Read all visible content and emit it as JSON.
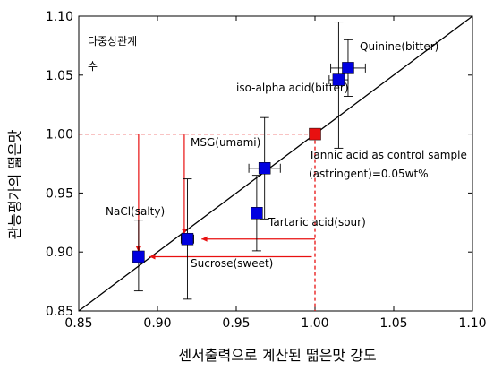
{
  "chart_data": {
    "type": "scatter",
    "title": "",
    "xlabel": "센서출력으로 계산된 떫은맛 강도",
    "ylabel": "관능평가의 떫은맛",
    "xlim": [
      0.85,
      1.1
    ],
    "ylim": [
      0.85,
      1.1
    ],
    "x_ticks": [
      "0.85",
      "0.90",
      "0.95",
      "1.00",
      "1.05",
      "1.10"
    ],
    "y_ticks": [
      "0.85",
      "0.90",
      "0.95",
      "1.00",
      "1.05",
      "1.10"
    ],
    "grid": false,
    "annotation_corr": [
      "다중상관계",
      "수"
    ],
    "diagonal": {
      "from": [
        0.85,
        0.85
      ],
      "to": [
        1.1,
        1.1
      ]
    },
    "reference": {
      "x": 1.0,
      "y": 1.0,
      "color": "#e81010"
    },
    "points": [
      {
        "name": "NaCl(salty)",
        "x": 0.888,
        "y": 0.896,
        "yerr": [
          0.867,
          0.927
        ],
        "xerr": null,
        "color": "#0000e0"
      },
      {
        "name": "Sucrose(sweet)",
        "x": 0.919,
        "y": 0.911,
        "yerr": [
          0.86,
          0.962
        ],
        "xerr": [
          0.915,
          0.923
        ],
        "color": "#0000e0"
      },
      {
        "name": "Tartaric acid(sour)",
        "x": 0.963,
        "y": 0.933,
        "yerr": [
          0.901,
          0.965
        ],
        "xerr": null,
        "color": "#0000e0"
      },
      {
        "name": "MSG(umami)",
        "x": 0.968,
        "y": 0.971,
        "yerr": [
          0.928,
          1.014
        ],
        "xerr": [
          0.958,
          0.978
        ],
        "color": "#0000e0"
      },
      {
        "name": "iso-alpha acid(bitter)",
        "x": 1.015,
        "y": 1.046,
        "yerr": [
          0.988,
          1.095
        ],
        "xerr": [
          1.009,
          1.021
        ],
        "color": "#0000e0"
      },
      {
        "name": "Quinine(bitter)",
        "x": 1.021,
        "y": 1.056,
        "yerr": [
          1.032,
          1.08
        ],
        "xerr": [
          1.01,
          1.032
        ],
        "color": "#0000e0"
      },
      {
        "name": "Tannic acid as control sample",
        "x": 1.0,
        "y": 1.0,
        "yerr": null,
        "xerr": null,
        "color": "#e81010"
      }
    ],
    "control_note": "(astringent)=0.05wt%",
    "arrows": [
      {
        "from": [
          0.888,
          1.0
        ],
        "to": [
          0.888,
          0.9
        ]
      },
      {
        "from": [
          0.917,
          1.0
        ],
        "to": [
          0.917,
          0.915
        ]
      },
      {
        "from": [
          1.0,
          0.911
        ],
        "to": [
          0.928,
          0.911
        ]
      },
      {
        "from": [
          0.998,
          0.896
        ],
        "to": [
          0.895,
          0.896
        ]
      }
    ]
  },
  "colors": {
    "marker": "#0000e0",
    "control": "#e81010",
    "arrow": "#e81010",
    "ref_line": "#e81010"
  }
}
